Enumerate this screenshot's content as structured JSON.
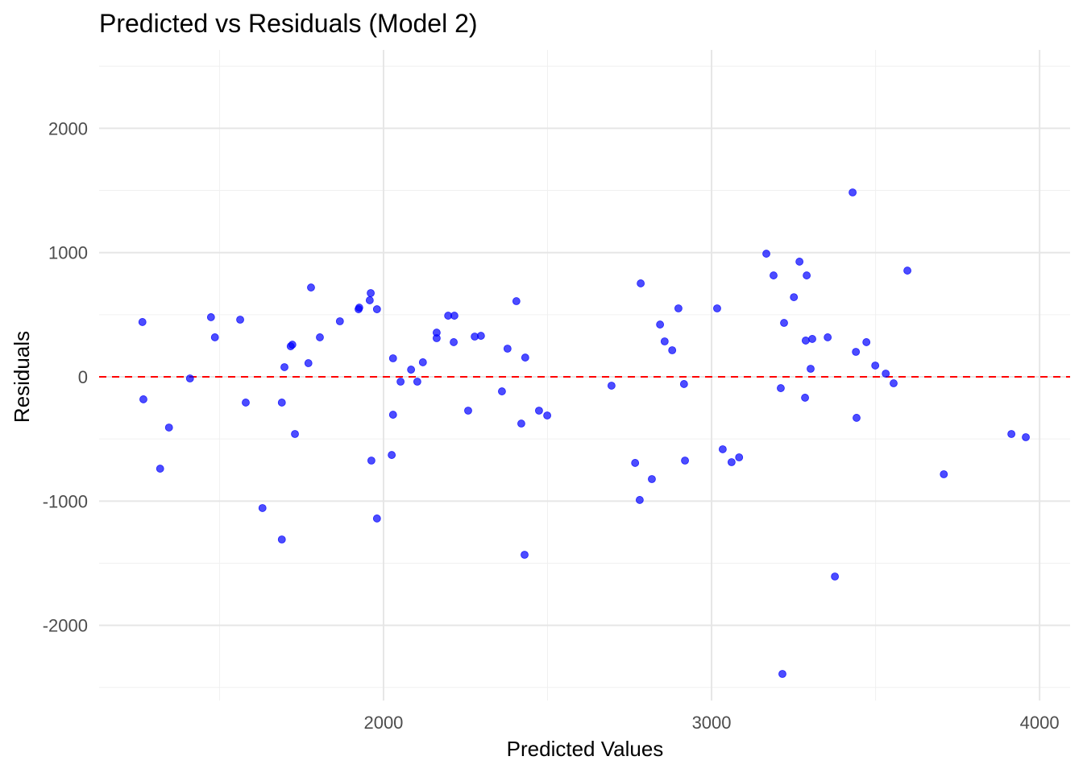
{
  "chart_data": {
    "type": "scatter",
    "title": "Predicted vs Residuals (Model 2)",
    "xlabel": "Predicted Values",
    "ylabel": "Residuals",
    "xlim": [
      1133,
      4093
    ],
    "ylim": [
      -2605,
      2631
    ],
    "xticks": [
      2000,
      3000,
      4000
    ],
    "xminor": [
      1500,
      2500,
      3500
    ],
    "yticks": [
      -2000,
      -1000,
      0,
      1000,
      2000
    ],
    "yminor": [
      -2500,
      -1500,
      -500,
      500,
      1500,
      2500
    ],
    "grid": true,
    "reference_line": {
      "y": 0,
      "color": "#ff0000",
      "style": "dashed"
    },
    "point_color": "#0000ff",
    "points": [
      [
        1265,
        441
      ],
      [
        1268,
        -181
      ],
      [
        1319,
        -739
      ],
      [
        1346,
        -408
      ],
      [
        1410,
        -13
      ],
      [
        1474,
        480
      ],
      [
        1486,
        318
      ],
      [
        1563,
        460
      ],
      [
        1580,
        -207
      ],
      [
        1631,
        -1056
      ],
      [
        1690,
        -1309
      ],
      [
        1690,
        -207
      ],
      [
        1698,
        78
      ],
      [
        1717,
        246
      ],
      [
        1722,
        259
      ],
      [
        1730,
        -460
      ],
      [
        1771,
        110
      ],
      [
        1779,
        719
      ],
      [
        1806,
        318
      ],
      [
        1867,
        447
      ],
      [
        1924,
        544
      ],
      [
        1926,
        557
      ],
      [
        1958,
        616
      ],
      [
        1961,
        674
      ],
      [
        1963,
        -674
      ],
      [
        1980,
        544
      ],
      [
        1980,
        -1140
      ],
      [
        2025,
        -629
      ],
      [
        2029,
        149
      ],
      [
        2029,
        -305
      ],
      [
        2052,
        -39
      ],
      [
        2084,
        58
      ],
      [
        2103,
        -39
      ],
      [
        2120,
        117
      ],
      [
        2162,
        356
      ],
      [
        2162,
        311
      ],
      [
        2197,
        492
      ],
      [
        2216,
        492
      ],
      [
        2214,
        279
      ],
      [
        2258,
        -272
      ],
      [
        2278,
        324
      ],
      [
        2297,
        330
      ],
      [
        2361,
        -117
      ],
      [
        2378,
        227
      ],
      [
        2405,
        609
      ],
      [
        2420,
        -376
      ],
      [
        2430,
        -1432
      ],
      [
        2432,
        155
      ],
      [
        2474,
        -272
      ],
      [
        2499,
        -311
      ],
      [
        2695,
        -71
      ],
      [
        2767,
        -693
      ],
      [
        2781,
        -991
      ],
      [
        2784,
        752
      ],
      [
        2818,
        -823
      ],
      [
        2843,
        421
      ],
      [
        2857,
        285
      ],
      [
        2880,
        214
      ],
      [
        2899,
        551
      ],
      [
        2916,
        -58
      ],
      [
        2919,
        -674
      ],
      [
        3017,
        551
      ],
      [
        3034,
        -583
      ],
      [
        3061,
        -687
      ],
      [
        3084,
        -648
      ],
      [
        3167,
        991
      ],
      [
        3189,
        816
      ],
      [
        3211,
        -91
      ],
      [
        3216,
        -2391
      ],
      [
        3221,
        434
      ],
      [
        3251,
        641
      ],
      [
        3268,
        927
      ],
      [
        3285,
        -168
      ],
      [
        3287,
        292
      ],
      [
        3290,
        816
      ],
      [
        3302,
        65
      ],
      [
        3307,
        305
      ],
      [
        3354,
        318
      ],
      [
        3376,
        -1607
      ],
      [
        3430,
        1484
      ],
      [
        3440,
        201
      ],
      [
        3442,
        -330
      ],
      [
        3472,
        279
      ],
      [
        3499,
        91
      ],
      [
        3531,
        26
      ],
      [
        3555,
        -52
      ],
      [
        3597,
        855
      ],
      [
        3708,
        -784
      ],
      [
        3914,
        -460
      ],
      [
        3958,
        -486
      ]
    ]
  }
}
